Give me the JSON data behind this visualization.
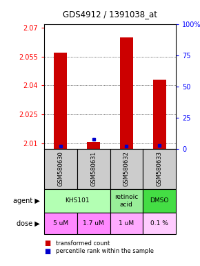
{
  "title": "GDS4912 / 1391038_at",
  "samples": [
    "GSM580630",
    "GSM580631",
    "GSM580632",
    "GSM580633"
  ],
  "red_values": [
    2.057,
    2.0105,
    2.065,
    2.043
  ],
  "blue_pct": [
    2,
    8,
    2,
    3
  ],
  "ylim": [
    2.007,
    2.072
  ],
  "yticks_left": [
    2.01,
    2.025,
    2.04,
    2.055,
    2.07
  ],
  "yticks_right": [
    0,
    25,
    50,
    75,
    100
  ],
  "agent_groups": [
    {
      "label": "KHS101",
      "start": 0,
      "end": 2,
      "color": "#b3ffb3"
    },
    {
      "label": "retinoic\nacid",
      "start": 2,
      "end": 3,
      "color": "#99ee99"
    },
    {
      "label": "DMSO",
      "start": 3,
      "end": 4,
      "color": "#44dd44"
    }
  ],
  "doses": [
    "5 uM",
    "1.7 uM",
    "1 uM",
    "0.1 %"
  ],
  "dose_colors": [
    "#ff88ff",
    "#ff88ff",
    "#ffaaff",
    "#ffccff"
  ],
  "sample_bg": "#cccccc",
  "bar_color": "#cc0000",
  "dot_color": "#0000cc",
  "legend_red": "transformed count",
  "legend_blue": "percentile rank within the sample",
  "base_value": 2.007
}
